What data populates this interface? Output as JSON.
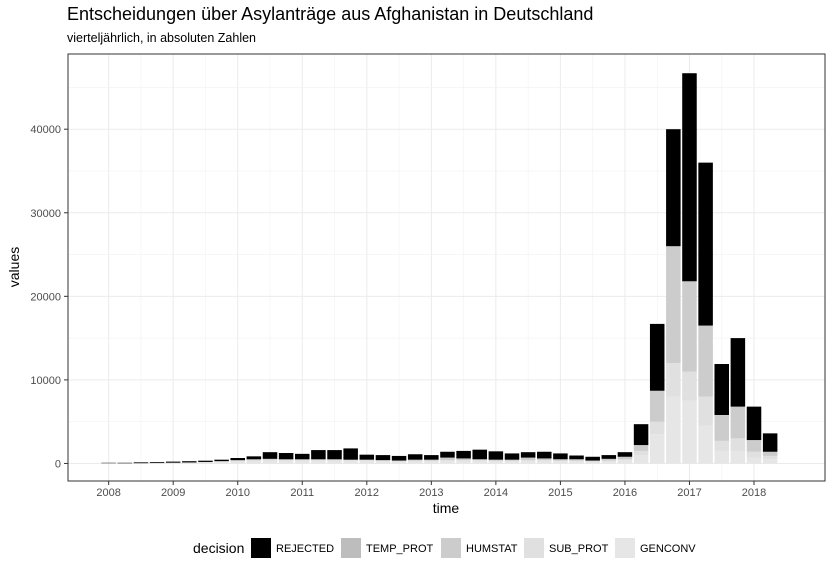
{
  "chart_data": {
    "type": "bar",
    "stacked": true,
    "title": "Entscheidungen über Asylanträge aus Afghanistan in Deutschland",
    "subtitle": "vierteljährlich, in absoluten Zahlen",
    "xlabel": "time",
    "ylabel": "values",
    "ylim": [
      -2100,
      49000
    ],
    "xlim": [
      2007.37,
      2019.1
    ],
    "y_ticks": [
      0,
      10000,
      20000,
      30000,
      40000
    ],
    "x_ticks": [
      2008,
      2009,
      2010,
      2011,
      2012,
      2013,
      2014,
      2015,
      2016,
      2017,
      2018
    ],
    "grid": true,
    "legend_position": "bottom",
    "legend_title": "decision",
    "x": [
      2008.0,
      2008.25,
      2008.5,
      2008.75,
      2009.0,
      2009.25,
      2009.5,
      2009.75,
      2010.0,
      2010.25,
      2010.5,
      2010.75,
      2011.0,
      2011.25,
      2011.5,
      2011.75,
      2012.0,
      2012.25,
      2012.5,
      2012.75,
      2013.0,
      2013.25,
      2013.5,
      2013.75,
      2014.0,
      2014.25,
      2014.5,
      2014.75,
      2015.0,
      2015.25,
      2015.5,
      2015.75,
      2016.0,
      2016.25,
      2016.5,
      2016.75,
      2017.0,
      2017.25,
      2017.5,
      2017.75,
      2018.0,
      2018.25
    ],
    "series": [
      {
        "name": "GENCONV",
        "color": "#e6e6e6",
        "values": [
          30,
          20,
          30,
          40,
          60,
          70,
          100,
          150,
          200,
          250,
          300,
          300,
          300,
          300,
          300,
          300,
          300,
          250,
          200,
          250,
          250,
          300,
          300,
          300,
          250,
          250,
          300,
          300,
          250,
          250,
          200,
          250,
          400,
          1000,
          3500,
          8000,
          7500,
          4500,
          1500,
          1500,
          700,
          500
        ]
      },
      {
        "name": "SUB_PROT",
        "color": "#e0e0e0",
        "values": [
          0,
          0,
          0,
          10,
          20,
          30,
          50,
          80,
          100,
          150,
          150,
          100,
          100,
          100,
          100,
          100,
          100,
          100,
          100,
          100,
          100,
          100,
          100,
          100,
          100,
          100,
          100,
          100,
          100,
          100,
          50,
          100,
          100,
          500,
          1500,
          4000,
          3500,
          3500,
          1200,
          1500,
          700,
          400
        ]
      },
      {
        "name": "HUMSTAT",
        "color": "#cccccc",
        "values": [
          0,
          0,
          0,
          0,
          10,
          20,
          30,
          50,
          100,
          100,
          100,
          100,
          100,
          100,
          100,
          50,
          50,
          50,
          50,
          100,
          100,
          300,
          200,
          100,
          100,
          100,
          300,
          200,
          150,
          150,
          100,
          200,
          300,
          700,
          3700,
          14000,
          10800,
          8500,
          3100,
          3800,
          1400,
          500
        ]
      },
      {
        "name": "TEMP_PROT",
        "color": "#bdbdbd",
        "values": [
          0,
          0,
          0,
          0,
          0,
          0,
          0,
          0,
          0,
          0,
          0,
          0,
          0,
          0,
          0,
          0,
          0,
          0,
          0,
          0,
          0,
          0,
          0,
          0,
          0,
          0,
          0,
          0,
          0,
          0,
          0,
          0,
          0,
          0,
          0,
          0,
          0,
          0,
          0,
          0,
          0,
          0
        ]
      },
      {
        "name": "REJECTED",
        "color": "#000000",
        "values": [
          50,
          60,
          100,
          100,
          130,
          150,
          150,
          170,
          250,
          350,
          800,
          750,
          650,
          1100,
          1100,
          1350,
          600,
          600,
          550,
          650,
          550,
          700,
          900,
          1150,
          1000,
          750,
          650,
          800,
          700,
          450,
          450,
          450,
          550,
          2500,
          8000,
          14000,
          24900,
          19500,
          6100,
          8200,
          4000,
          2200
        ]
      }
    ]
  }
}
